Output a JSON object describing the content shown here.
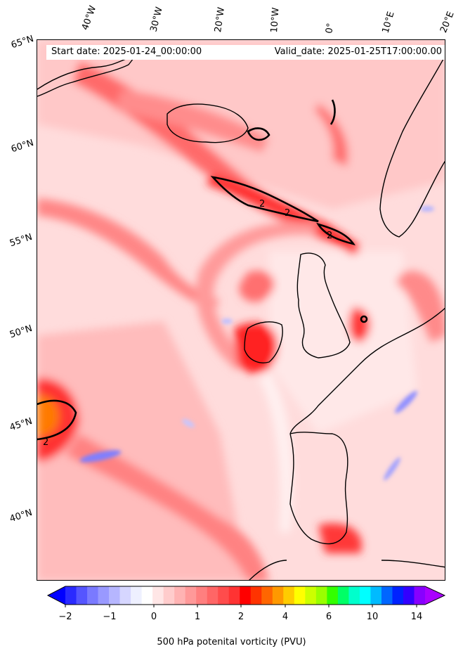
{
  "header": {
    "start_date": "Start date: 2025-01-24_00:00:00",
    "valid_date": "Valid_date: 2025-01-25T17:00:00.00"
  },
  "longitude_labels": [
    "40°W",
    "30°W",
    "20°W",
    "10°W",
    "0°",
    "10°E",
    "20°E"
  ],
  "latitude_labels": [
    "65°N",
    "60°N",
    "55°N",
    "50°N",
    "45°N",
    "40°N"
  ],
  "contour_label": "2",
  "colorbar": {
    "label": "500 hPa potenital vorticity (PVU)",
    "ticks": [
      "−2",
      "−1",
      "0",
      "1",
      "2",
      "4",
      "6",
      "10",
      "14"
    ],
    "colors": [
      "#0000ff",
      "#2a2aff",
      "#5555ff",
      "#7a7aff",
      "#9999ff",
      "#b6b6ff",
      "#d6d6ff",
      "#eef0ff",
      "#ffffff",
      "#ffe6e6",
      "#ffcccc",
      "#ffb3b3",
      "#ff9999",
      "#ff7f7f",
      "#ff6666",
      "#ff4c4c",
      "#ff3333",
      "#ff0000",
      "#ff3300",
      "#ff6600",
      "#ff9900",
      "#ffcc00",
      "#ffff00",
      "#ccff00",
      "#99ff00",
      "#33ff00",
      "#00ff66",
      "#00ffcc",
      "#00ffff",
      "#00bbff",
      "#0066ff",
      "#0022ff",
      "#3300ff",
      "#8800ff",
      "#aa00ff"
    ]
  }
}
